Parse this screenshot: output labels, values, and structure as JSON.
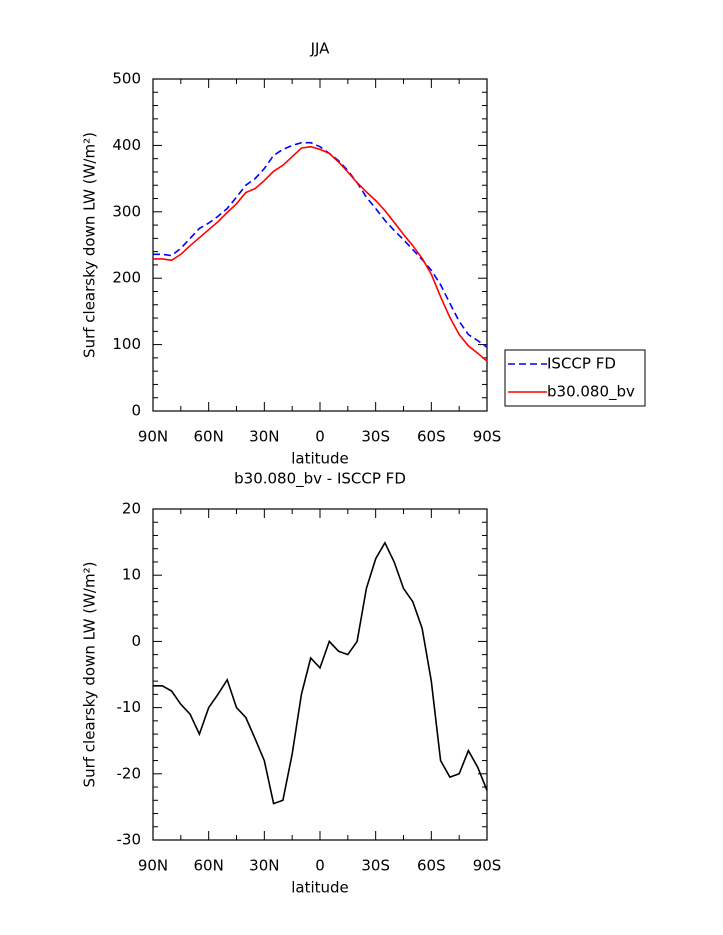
{
  "chart_data": [
    {
      "type": "line",
      "title": "JJA",
      "xlabel": "latitude",
      "ylabel": "Surf clearsky down LW (W/m²)",
      "x": [
        90,
        85,
        80,
        75,
        70,
        65,
        60,
        55,
        50,
        45,
        40,
        35,
        30,
        25,
        20,
        15,
        10,
        5,
        0,
        -5,
        -10,
        -15,
        -20,
        -25,
        -30,
        -35,
        -40,
        -45,
        -50,
        -55,
        -60,
        -65,
        -70,
        -75,
        -80,
        -85,
        -90
      ],
      "series": [
        {
          "name": "ISCCP FD",
          "color": "#0000ff",
          "dashed": true,
          "values": [
            236,
            236,
            234,
            245,
            260,
            275,
            283,
            293,
            305,
            322,
            340,
            350,
            365,
            385,
            394,
            400,
            404,
            404,
            398,
            388,
            377,
            362,
            344,
            322,
            305,
            287,
            272,
            258,
            243,
            228,
            212,
            190,
            162,
            135,
            115,
            106,
            96
          ]
        },
        {
          "name": "b30.080_bv",
          "color": "#ff0000",
          "dashed": false,
          "values": [
            229,
            229,
            227,
            236,
            249,
            261,
            273,
            285,
            299,
            312,
            329,
            335,
            347,
            361,
            370,
            383,
            396,
            398,
            394,
            388,
            375,
            360,
            344,
            330,
            317,
            302,
            284,
            266,
            249,
            230,
            206,
            172,
            141,
            115,
            98,
            87,
            75
          ]
        }
      ],
      "xlim": [
        90,
        -90
      ],
      "xticks": [
        {
          "value": 90,
          "label": "90N"
        },
        {
          "value": 60,
          "label": "60N"
        },
        {
          "value": 30,
          "label": "30N"
        },
        0,
        {
          "value": -30,
          "label": "30S"
        },
        {
          "value": -60,
          "label": "60S"
        },
        {
          "value": -90,
          "label": "90S"
        }
      ],
      "ylim": [
        0,
        500
      ],
      "yticks": [
        0,
        100,
        200,
        300,
        400,
        500
      ],
      "legend": "right"
    },
    {
      "type": "line",
      "title": "b30.080_bv - ISCCP FD",
      "xlabel": "latitude",
      "ylabel": "Surf clearsky down LW (W/m²)",
      "x": [
        90,
        85,
        80,
        75,
        70,
        65,
        60,
        55,
        50,
        45,
        40,
        35,
        30,
        25,
        20,
        15,
        10,
        5,
        0,
        -5,
        -10,
        -15,
        -20,
        -25,
        -30,
        -35,
        -40,
        -45,
        -50,
        -55,
        -60,
        -65,
        -70,
        -75,
        -80,
        -85,
        -90
      ],
      "series": [
        {
          "color": "#000000",
          "dashed": false,
          "values": [
            -6.7,
            -6.7,
            -7.5,
            -9.5,
            -11,
            -14,
            -10,
            -8,
            -5.8,
            -10,
            -11.5,
            -14.7,
            -18,
            -24.5,
            -24,
            -17,
            -8,
            -2.5,
            -4,
            0,
            -1.5,
            -2,
            0,
            8,
            12.5,
            14.9,
            12,
            8,
            6,
            2,
            -6,
            -18,
            -20.5,
            -20,
            -16.5,
            -19,
            -22.5
          ]
        }
      ],
      "xlim": [
        90,
        -90
      ],
      "xticks": [
        {
          "value": 90,
          "label": "90N"
        },
        {
          "value": 60,
          "label": "60N"
        },
        {
          "value": 30,
          "label": "30N"
        },
        0,
        {
          "value": -30,
          "label": "30S"
        },
        {
          "value": -60,
          "label": "60S"
        },
        {
          "value": -90,
          "label": "90S"
        }
      ],
      "ylim": [
        -30,
        20
      ],
      "yticks": [
        -30,
        -20,
        -10,
        0,
        10,
        20
      ]
    }
  ]
}
